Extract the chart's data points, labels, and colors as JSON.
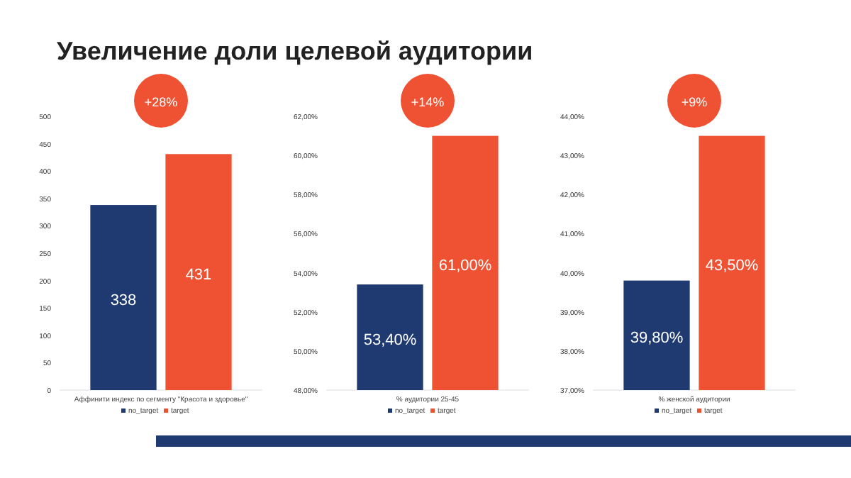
{
  "chart_data": [
    {
      "type": "bar",
      "title": "Увеличение доли целевой аудитории",
      "annotations": [
        "+28%"
      ],
      "categories": [
        "Аффинити индекс по сегменту \"Красота и здоровье\""
      ],
      "series": [
        {
          "name": "no_target",
          "color": "#1f3a70",
          "values": [
            338
          ],
          "value_labels": [
            "338"
          ]
        },
        {
          "name": "target",
          "color": "#ef5233",
          "values": [
            431
          ],
          "value_labels": [
            "431"
          ]
        }
      ],
      "ylim": [
        0,
        500
      ],
      "yticks": [
        0,
        50,
        100,
        150,
        200,
        250,
        300,
        350,
        400,
        450,
        500
      ],
      "legend": "bottom"
    },
    {
      "type": "bar",
      "annotations": [
        "+14%"
      ],
      "categories": [
        "% аудитории 25-45"
      ],
      "series": [
        {
          "name": "no_target",
          "color": "#1f3a70",
          "values": [
            53.4
          ],
          "value_labels": [
            "53,40%"
          ]
        },
        {
          "name": "target",
          "color": "#ef5233",
          "values": [
            61
          ],
          "value_labels": [
            "61,00%"
          ]
        }
      ],
      "ylim": [
        48,
        62
      ],
      "yticks": [
        {
          "value": 48,
          "label": "48,00%"
        },
        {
          "value": 50,
          "label": "50,00%"
        },
        {
          "value": 52,
          "label": "52,00%"
        },
        {
          "value": 54,
          "label": "54,00%"
        },
        {
          "value": 56,
          "label": "56,00%"
        },
        {
          "value": 58,
          "label": "58,00%"
        },
        {
          "value": 60,
          "label": "60,00%"
        },
        {
          "value": 62,
          "label": "62,00%"
        }
      ],
      "legend": "bottom"
    },
    {
      "type": "bar",
      "annotations": [
        "+9%"
      ],
      "categories": [
        "% женской аудитории"
      ],
      "series": [
        {
          "name": "no_target",
          "color": "#1f3a70",
          "values": [
            39.8
          ],
          "value_labels": [
            "39,80%"
          ]
        },
        {
          "name": "target",
          "color": "#ef5233",
          "values": [
            43.5
          ],
          "value_labels": [
            "43,50%"
          ]
        }
      ],
      "ylim": [
        37,
        44
      ],
      "yticks": [
        {
          "value": 37,
          "label": "37,00%"
        },
        {
          "value": 38,
          "label": "38,00%"
        },
        {
          "value": 39,
          "label": "39,00%"
        },
        {
          "value": 40,
          "label": "40,00%"
        },
        {
          "value": 41,
          "label": "41,00%"
        },
        {
          "value": 42,
          "label": "42,00%"
        },
        {
          "value": 43,
          "label": "43,00%"
        },
        {
          "value": 44,
          "label": "44,00%"
        }
      ],
      "legend": "bottom"
    }
  ]
}
